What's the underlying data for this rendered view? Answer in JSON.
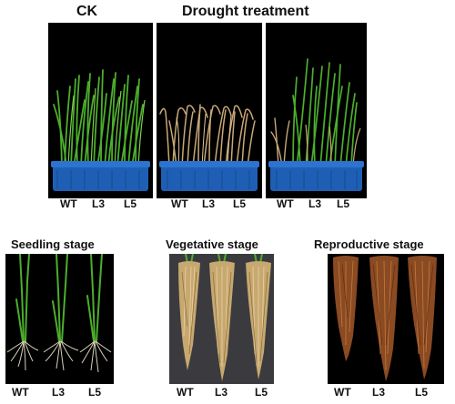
{
  "figure": {
    "top": {
      "headers": {
        "ck": "CK",
        "drought": "Drought treatment"
      },
      "panels": [
        {
          "labels": [
            "WT",
            "L3",
            "L5"
          ]
        },
        {
          "labels": [
            "WT",
            "L3",
            "L5"
          ]
        },
        {
          "labels": [
            "WT",
            "L3",
            "L5"
          ]
        }
      ]
    },
    "bottom": {
      "panels": [
        {
          "title": "Seedling stage",
          "labels": [
            "WT",
            "L3",
            "L5"
          ]
        },
        {
          "title": "Vegetative stage",
          "labels": [
            "WT",
            "L3",
            "L5"
          ]
        },
        {
          "title": "Reproductive stage",
          "labels": [
            "WT",
            "L3",
            "L5"
          ]
        }
      ]
    }
  }
}
